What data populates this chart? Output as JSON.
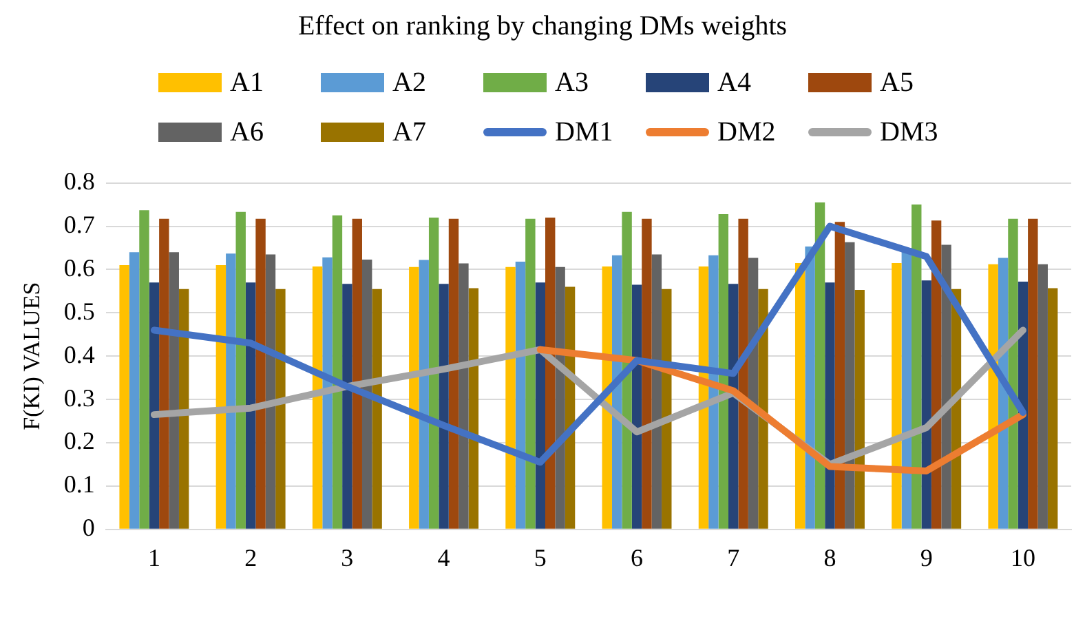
{
  "chart_data": {
    "type": "bar",
    "title": "Effect on ranking by changing DMs weights",
    "ylabel": "F(KI) VALUES",
    "categories": [
      "1",
      "2",
      "3",
      "4",
      "5",
      "6",
      "7",
      "8",
      "9",
      "10"
    ],
    "series": [
      {
        "name": "A1",
        "color": "#ffc000",
        "values": [
          0.61,
          0.61,
          0.607,
          0.606,
          0.606,
          0.607,
          0.607,
          0.615,
          0.615,
          0.612
        ]
      },
      {
        "name": "A2",
        "color": "#5b9bd5",
        "values": [
          0.64,
          0.637,
          0.628,
          0.622,
          0.618,
          0.633,
          0.633,
          0.653,
          0.65,
          0.627
        ]
      },
      {
        "name": "A3",
        "color": "#70ad47",
        "values": [
          0.737,
          0.733,
          0.725,
          0.72,
          0.717,
          0.733,
          0.728,
          0.755,
          0.75,
          0.717
        ]
      },
      {
        "name": "A4",
        "color": "#264478",
        "values": [
          0.57,
          0.57,
          0.567,
          0.567,
          0.57,
          0.565,
          0.567,
          0.57,
          0.575,
          0.572
        ]
      },
      {
        "name": "A5",
        "color": "#9e480e",
        "values": [
          0.717,
          0.717,
          0.717,
          0.717,
          0.72,
          0.717,
          0.717,
          0.71,
          0.713,
          0.717
        ]
      },
      {
        "name": "A6",
        "color": "#636363",
        "values": [
          0.64,
          0.635,
          0.623,
          0.614,
          0.606,
          0.635,
          0.627,
          0.663,
          0.657,
          0.612
        ]
      },
      {
        "name": "A7",
        "color": "#997300",
        "values": [
          0.555,
          0.555,
          0.555,
          0.557,
          0.56,
          0.555,
          0.555,
          0.553,
          0.555,
          0.557
        ]
      },
      {
        "name": "DM1",
        "type": "line",
        "color": "#4472c4",
        "values": [
          0.46,
          0.43,
          0.33,
          0.24,
          0.155,
          0.39,
          0.36,
          0.7,
          0.63,
          0.27
        ]
      },
      {
        "name": "DM2",
        "type": "line",
        "color": "#ed7d31",
        "values": [
          null,
          null,
          null,
          null,
          0.415,
          0.39,
          0.32,
          0.145,
          0.135,
          0.265
        ]
      },
      {
        "name": "DM3",
        "type": "line",
        "color": "#a5a5a5",
        "values": [
          0.265,
          0.28,
          0.33,
          0.37,
          0.415,
          0.225,
          0.315,
          0.15,
          0.235,
          0.46
        ]
      }
    ],
    "ylim": [
      0,
      0.8
    ],
    "yticks": [
      0,
      0.1,
      0.2,
      0.3,
      0.4,
      0.5,
      0.6,
      0.7,
      0.8
    ],
    "grid": "y",
    "legend": "top",
    "marker": "none",
    "line_style": "solid"
  }
}
